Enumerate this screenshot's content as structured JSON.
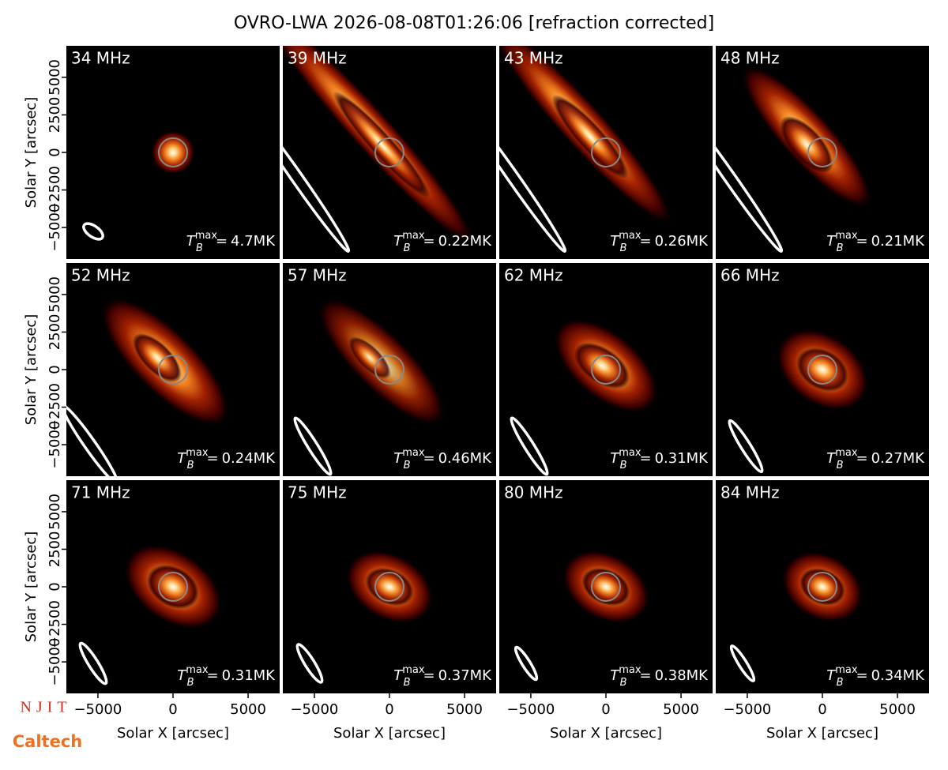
{
  "title": "OVRO-LWA 2026-08-08T01:26:06 [refraction corrected]",
  "panels": [
    {
      "label": "34 MHz",
      "tmax": "4.7MK"
    },
    {
      "label": "39 MHz",
      "tmax": "0.22MK"
    },
    {
      "label": "43 MHz",
      "tmax": "0.26MK"
    },
    {
      "label": "48 MHz",
      "tmax": "0.21MK"
    },
    {
      "label": "52 MHz",
      "tmax": "0.24MK"
    },
    {
      "label": "57 MHz",
      "tmax": "0.46MK"
    },
    {
      "label": "62 MHz",
      "tmax": "0.31MK"
    },
    {
      "label": "66 MHz",
      "tmax": "0.27MK"
    },
    {
      "label": "71 MHz",
      "tmax": "0.31MK"
    },
    {
      "label": "75 MHz",
      "tmax": "0.37MK"
    },
    {
      "label": "80 MHz",
      "tmax": "0.38MK"
    },
    {
      "label": "84 MHz",
      "tmax": "0.34MK"
    }
  ],
  "tmax_symbol": "T",
  "tmax_sub": "B",
  "tmax_sup": "max",
  "tmax_equals": "=",
  "xlabel": "Solar X [arcsec]",
  "ylabel": "Solar Y [arcsec]",
  "xlim": [
    -7100,
    7100
  ],
  "ylim": [
    -7100,
    7100
  ],
  "xticks": [
    {
      "value": -5000,
      "label": "−5000"
    },
    0,
    5000
  ],
  "yticks": [
    {
      "value": -5000,
      "label": "−5000"
    },
    {
      "value": -2500,
      "label": "−2500"
    },
    0,
    2500,
    5000
  ],
  "logos": [
    "NJIT",
    "Caltech"
  ]
}
